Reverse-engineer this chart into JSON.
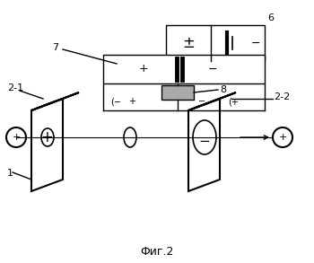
{
  "title": "Фиг.2",
  "bg_color": "#ffffff",
  "lc": "#000000",
  "gray": "#aaaaaa"
}
